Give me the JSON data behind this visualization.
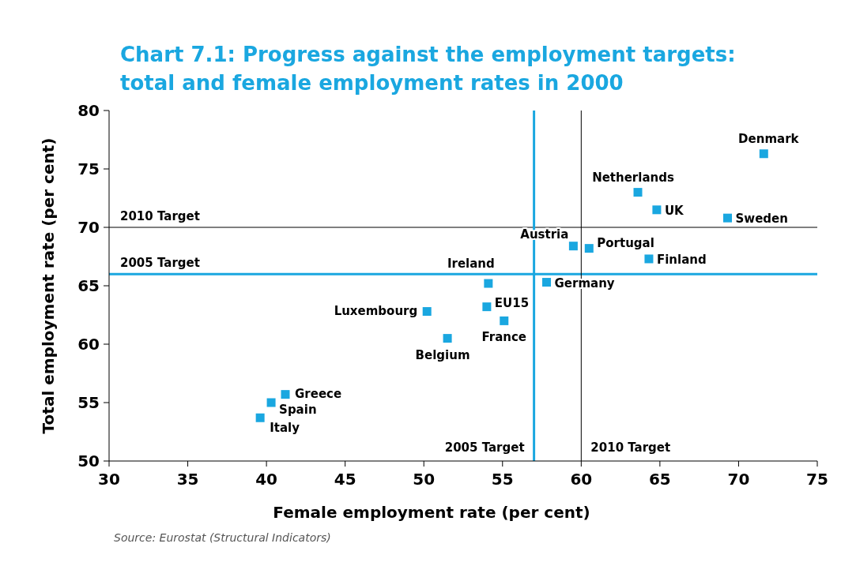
{
  "chart_data": {
    "type": "scatter",
    "title": "Chart 7.1: Progress against the employment targets: total and female employment rates in 2000",
    "xlabel": "Female employment rate (per cent)",
    "ylabel": "Total employment rate (per cent)",
    "xlim": [
      30,
      75
    ],
    "ylim": [
      50,
      80
    ],
    "xticks": [
      30,
      35,
      40,
      45,
      50,
      55,
      60,
      65,
      70,
      75
    ],
    "yticks": [
      50,
      55,
      60,
      65,
      70,
      75,
      80
    ],
    "grid": false,
    "marker": "square",
    "series": [
      {
        "color": "#1aa7e0",
        "x": [
          71.6,
          63.6,
          64.8,
          69.3,
          59.5,
          60.5,
          64.3,
          54.1,
          57.8,
          54.0,
          50.2,
          55.1,
          51.5,
          41.2,
          40.3,
          39.6
        ],
        "values": [
          76.3,
          73.0,
          71.5,
          70.8,
          68.4,
          68.2,
          67.3,
          65.2,
          65.3,
          63.2,
          62.8,
          62.0,
          60.5,
          55.7,
          55.0,
          53.7
        ]
      }
    ],
    "ref_lines": [
      {
        "axis": "y",
        "value": 70,
        "label": "2010 Target",
        "color": "#000000"
      },
      {
        "axis": "y",
        "value": 66,
        "label": "2005 Target",
        "color": "#1aa7e0"
      },
      {
        "axis": "x",
        "value": 57,
        "label": "2005 Target",
        "color": "#1aa7e0"
      },
      {
        "axis": "x",
        "value": 60,
        "label": "2010 Target",
        "color": "#000000"
      }
    ],
    "annotations": [
      {
        "text": "Denmark",
        "x": 71.6,
        "y": 76.3
      },
      {
        "text": "Netherlands",
        "x": 63.6,
        "y": 73.0
      },
      {
        "text": "UK",
        "x": 64.8,
        "y": 71.5
      },
      {
        "text": "Sweden",
        "x": 69.3,
        "y": 70.8
      },
      {
        "text": "Austria",
        "x": 59.5,
        "y": 68.4
      },
      {
        "text": "Portugal",
        "x": 60.5,
        "y": 68.2
      },
      {
        "text": "Finland",
        "x": 64.3,
        "y": 67.3
      },
      {
        "text": "Ireland",
        "x": 54.1,
        "y": 65.2
      },
      {
        "text": "Germany",
        "x": 57.8,
        "y": 65.3
      },
      {
        "text": "EU15",
        "x": 54.0,
        "y": 63.2
      },
      {
        "text": "Luxembourg",
        "x": 50.2,
        "y": 62.8
      },
      {
        "text": "France",
        "x": 55.1,
        "y": 62.0
      },
      {
        "text": "Belgium",
        "x": 51.5,
        "y": 60.5
      },
      {
        "text": "Greece",
        "x": 41.2,
        "y": 55.7
      },
      {
        "text": "Spain",
        "x": 40.3,
        "y": 55.0
      },
      {
        "text": "Italy",
        "x": 39.6,
        "y": 53.7
      },
      "Source: Eurostat (Structural Indicators)"
    ]
  }
}
